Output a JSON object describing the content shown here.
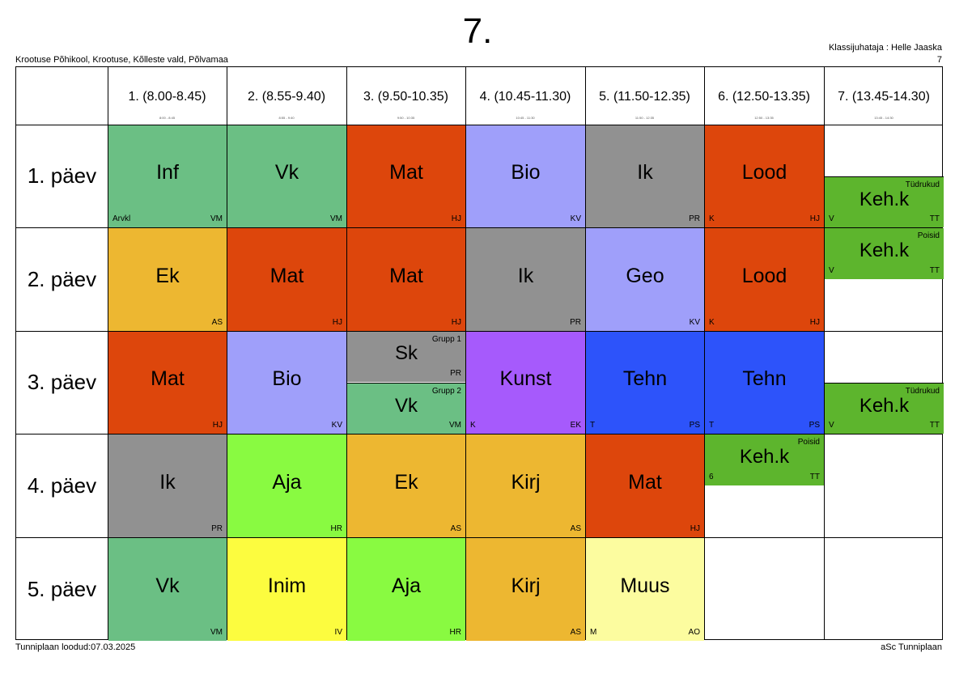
{
  "header": {
    "title": "7.",
    "school": "Krootuse Põhikool, Krootuse, Kõlleste vald, Põlvamaa",
    "teacher": "Klassijuhataja : Helle Jaaska",
    "teacher_num": "7"
  },
  "periods": [
    {
      "label": "1. (8.00-8.45)",
      "sub": "8:00 - 8:45"
    },
    {
      "label": "2. (8.55-9.40)",
      "sub": "8:55 - 9:40"
    },
    {
      "label": "3. (9.50-10.35)",
      "sub": "9:50 - 10:35"
    },
    {
      "label": "4. (10.45-11.30)",
      "sub": "10:45 - 11:30"
    },
    {
      "label": "5. (11.50-12.35)",
      "sub": "11:50 - 12:35"
    },
    {
      "label": "6. (12.50-13.35)",
      "sub": "12:50 - 13:35"
    },
    {
      "label": "7. (13.45-14.30)",
      "sub": "13:45 - 14:30"
    }
  ],
  "days": [
    "1. päev",
    "2. päev",
    "3. päev",
    "4. päev",
    "5. päev"
  ],
  "lessons": [
    {
      "subject": "Inf",
      "teacher": "VM",
      "room": "Arvkl",
      "color": "#6bbf84"
    },
    {
      "subject": "Vk",
      "teacher": "VM",
      "color": "#6bbf84"
    },
    {
      "subject": "Mat",
      "teacher": "HJ",
      "color": "#dd460c"
    },
    {
      "subject": "Bio",
      "teacher": "KV",
      "color": "#9f9ffa"
    },
    {
      "subject": "Ik",
      "teacher": "PR",
      "color": "#919191"
    },
    {
      "subject": "Lood",
      "teacher": "HJ",
      "room": "K",
      "color": "#dd460c"
    },
    {
      "subject": "Keh.k",
      "teacher": "TT",
      "room": "V",
      "group": "Tüdrukud",
      "color": "#5db52d"
    },
    {
      "subject": "Ek",
      "teacher": "AS",
      "color": "#edb731"
    },
    {
      "subject": "Mat",
      "teacher": "HJ",
      "color": "#dd460c"
    },
    {
      "subject": "Mat",
      "teacher": "HJ",
      "color": "#dd460c"
    },
    {
      "subject": "Ik",
      "teacher": "PR",
      "color": "#919191"
    },
    {
      "subject": "Geo",
      "teacher": "KV",
      "color": "#9f9ffa"
    },
    {
      "subject": "Lood",
      "teacher": "HJ",
      "room": "K",
      "color": "#dd460c"
    },
    {
      "subject": "Keh.k",
      "teacher": "TT",
      "room": "V",
      "group": "Poisid",
      "color": "#5db52d"
    },
    {
      "subject": "Mat",
      "teacher": "HJ",
      "color": "#dd460c"
    },
    {
      "subject": "Bio",
      "teacher": "KV",
      "color": "#9f9ffa"
    },
    {
      "subject": "Sk",
      "teacher": "PR",
      "group": "Grupp 1",
      "color": "#919191"
    },
    {
      "subject": "Vk",
      "teacher": "VM",
      "group": "Grupp 2",
      "color": "#6bbf84"
    },
    {
      "subject": "Kunst",
      "teacher": "EK",
      "room": "K",
      "color": "#a65afc"
    },
    {
      "subject": "Tehn",
      "teacher": "PS",
      "room": "T",
      "color": "#2d53fa"
    },
    {
      "subject": "Tehn",
      "teacher": "PS",
      "room": "T",
      "color": "#2d53fa"
    },
    {
      "subject": "Keh.k",
      "teacher": "TT",
      "room": "V",
      "group": "Tüdrukud",
      "color": "#5db52d"
    },
    {
      "subject": "Ik",
      "teacher": "PR",
      "color": "#919191"
    },
    {
      "subject": "Aja",
      "teacher": "HR",
      "color": "#89fa41"
    },
    {
      "subject": "Ek",
      "teacher": "AS",
      "color": "#edb731"
    },
    {
      "subject": "Kirj",
      "teacher": "AS",
      "color": "#edb731"
    },
    {
      "subject": "Mat",
      "teacher": "HJ",
      "color": "#dd460c"
    },
    {
      "subject": "Keh.k",
      "teacher": "TT",
      "room": "6",
      "group": "Poisid",
      "color": "#5db52d"
    },
    {
      "subject": "Vk",
      "teacher": "VM",
      "color": "#6bbf84"
    },
    {
      "subject": "Inim",
      "teacher": "IV",
      "color": "#fcfc3f"
    },
    {
      "subject": "Aja",
      "teacher": "HR",
      "color": "#89fa41"
    },
    {
      "subject": "Kirj",
      "teacher": "AS",
      "color": "#edb731"
    },
    {
      "subject": "Muus",
      "teacher": "AO",
      "room": "M",
      "color": "#fcfc9f"
    }
  ],
  "footer": {
    "left": "Tunniplaan loodud:07.03.2025",
    "right": "aSc Tunniplaan"
  }
}
